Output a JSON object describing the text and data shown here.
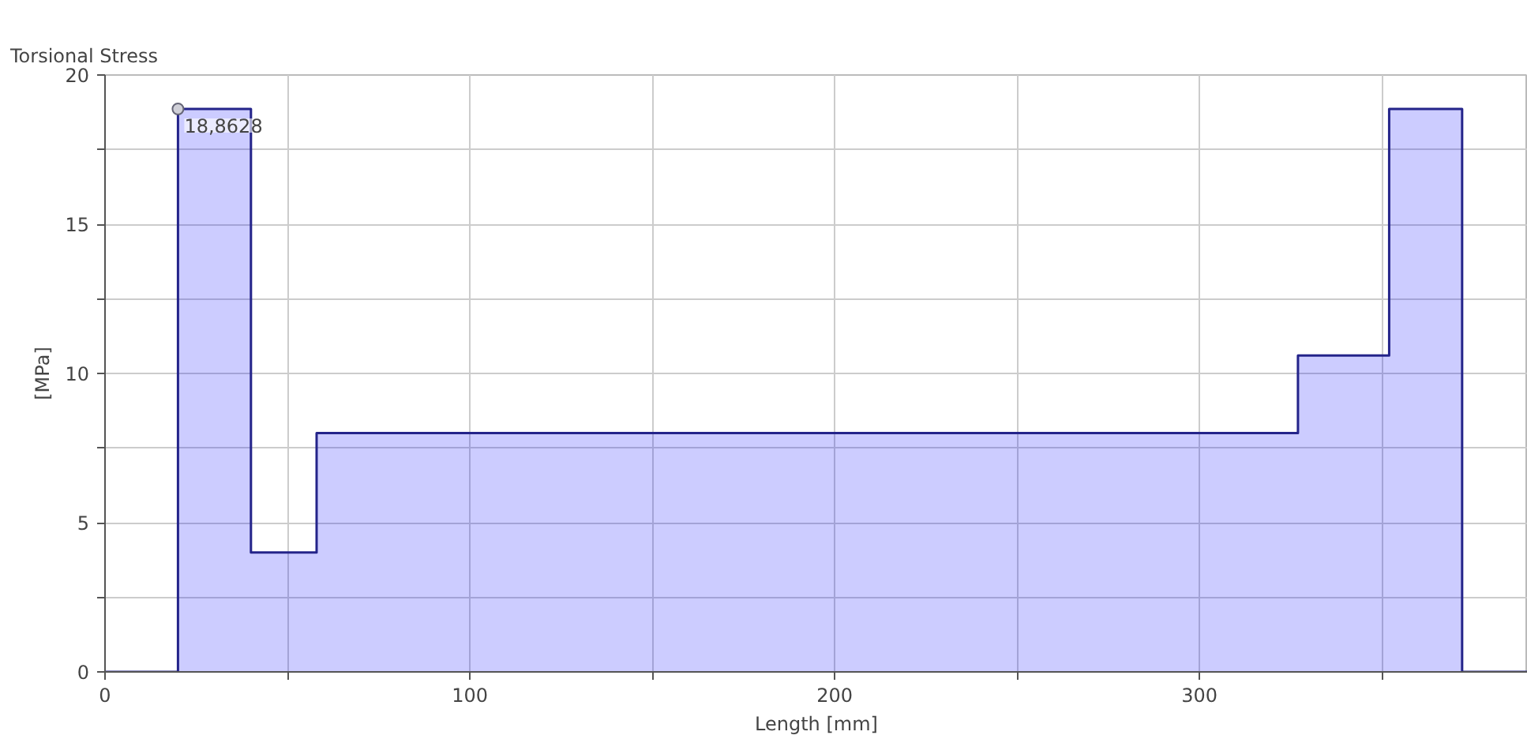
{
  "chart_data": {
    "type": "step",
    "title": "Torsional Stress",
    "xlabel": "Length [mm]",
    "ylabel": "[MPa]",
    "x": [
      0,
      20,
      40,
      58,
      327,
      352,
      372,
      390
    ],
    "series": [
      {
        "color": "#24248a",
        "values": [
          0,
          18.8628,
          4,
          8,
          10.6,
          18.86,
          0,
          0
        ]
      }
    ],
    "xlim": [
      0,
      390
    ],
    "ylim": [
      0,
      20
    ],
    "xticks": [
      0,
      {
        "value": 50,
        "label": null
      },
      100,
      {
        "value": 150,
        "label": null
      },
      200,
      {
        "value": 250,
        "label": null
      },
      300,
      {
        "value": 350,
        "label": null
      }
    ],
    "yticks": [
      0,
      {
        "value": 2.5,
        "label": null
      },
      5,
      {
        "value": 7.5,
        "label": null
      },
      10,
      {
        "value": 12.5,
        "label": null
      },
      15,
      {
        "value": 17.5,
        "label": null
      },
      20
    ],
    "grid": true,
    "annotations": [
      {
        "text": "18,8628",
        "x": 20,
        "y": 18.8628
      }
    ]
  }
}
